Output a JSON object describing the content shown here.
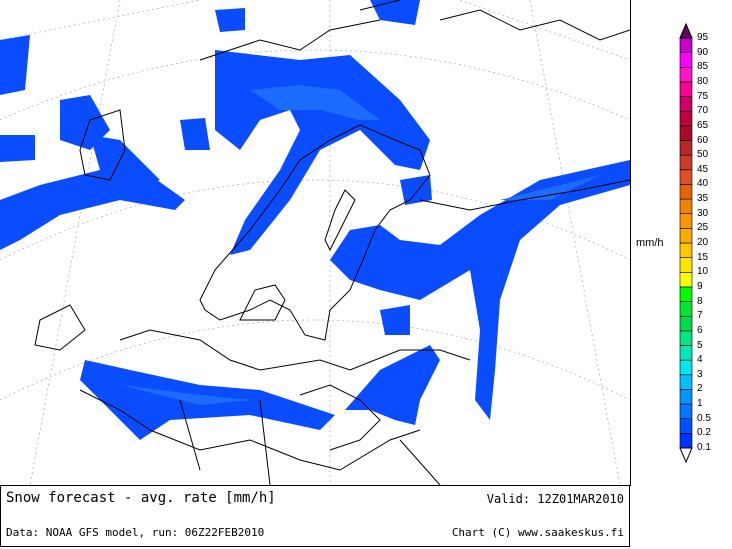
{
  "map": {
    "snow_color": "#0a4cff",
    "snow_light_color": "#1e6cff",
    "coast_color": "#000000",
    "graticule_color": "#aaaaaa"
  },
  "footer": {
    "title": "Snow forecast - avg. rate [mm/h]",
    "valid": "Valid: 12Z01MAR2010",
    "source": "Data: NOAA GFS model, run: 06Z22FEB2010",
    "credit": "Chart (C) www.saakeskus.fi"
  },
  "legend": {
    "unit": "mm/h",
    "labels": [
      "0.1",
      "0.2",
      "0.5",
      "1",
      "2",
      "3",
      "4",
      "5",
      "6",
      "7",
      "8",
      "9",
      "10",
      "15",
      "20",
      "25",
      "30",
      "35",
      "40",
      "45",
      "50",
      "60",
      "65",
      "70",
      "75",
      "80",
      "85",
      "90",
      "95"
    ],
    "band_colors": [
      "#0033ff",
      "#0050ff",
      "#0078ff",
      "#0096ff",
      "#00beff",
      "#00e6f0",
      "#00e6b4",
      "#00e682",
      "#00dc50",
      "#00e632",
      "#00ff00",
      "#ffff00",
      "#ffe600",
      "#ffc800",
      "#ffaa00",
      "#ff9600",
      "#f08200",
      "#e66400",
      "#e05028",
      "#cc3c28",
      "#b42828",
      "#aa0a28",
      "#c0003c",
      "#cc0064",
      "#ff0096",
      "#ff14c8",
      "#ff00ff",
      "#c800c8"
    ],
    "top_arrow_color": "#640064",
    "bottom_arrow_color": "#ffffff"
  }
}
